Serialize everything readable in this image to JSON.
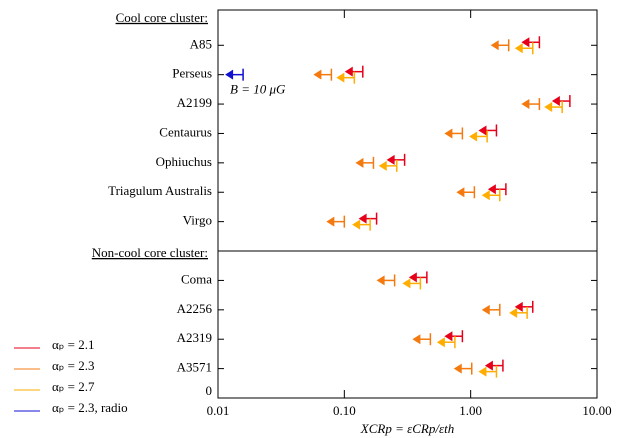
{
  "chart_data": {
    "type": "upper-limit",
    "xlabel": "XCRp = εCRp/εth",
    "xlog": true,
    "xlim": [
      0.01,
      10
    ],
    "xticks": [
      0.01,
      {
        "value": 0.1,
        "label": "0.10"
      },
      {
        "value": 1,
        "label": "1.00"
      },
      {
        "value": 10,
        "label": "10.00"
      }
    ],
    "ylim": [
      0,
      13.2
    ],
    "yticks": [
      0
    ],
    "categories": [
      "A85",
      "Perseus",
      "A2199",
      "Centaurus",
      "Ophiuchus",
      "Triagulum Australis",
      "Virgo",
      "Coma",
      "A2256",
      "A2319",
      "A3571"
    ],
    "y": [
      12,
      11,
      10,
      9,
      8,
      7,
      6,
      4,
      3,
      2,
      1
    ],
    "groups": [
      {
        "label": "Cool core cluster:",
        "y": 13
      },
      {
        "label": "Non-cool core cluster:",
        "y": 5
      }
    ],
    "annotation": "B = 10 μG",
    "series": [
      {
        "name": "αₚ = 2.1",
        "color": "#e6001a",
        "values": [
          3.5,
          0.14,
          6.1,
          1.6,
          0.3,
          1.9,
          0.18,
          0.45,
          3.1,
          0.86,
          1.8
        ]
      },
      {
        "name": "αₚ = 2.3",
        "color": "#f47a10",
        "values": [
          2.0,
          0.079,
          3.5,
          0.86,
          0.17,
          1.07,
          0.1,
          0.25,
          1.7,
          0.48,
          1.02
        ]
      },
      {
        "name": "αₚ = 2.7",
        "color": "#ffad00",
        "values": [
          3.1,
          0.12,
          5.3,
          1.35,
          0.26,
          1.7,
          0.16,
          0.4,
          2.8,
          0.75,
          1.6
        ]
      },
      {
        "name": "αₚ = 2.3, radio",
        "color": "#1010d0",
        "values": [
          null,
          0.0158,
          null,
          null,
          null,
          null,
          null,
          null,
          null,
          null,
          null
        ]
      }
    ]
  }
}
